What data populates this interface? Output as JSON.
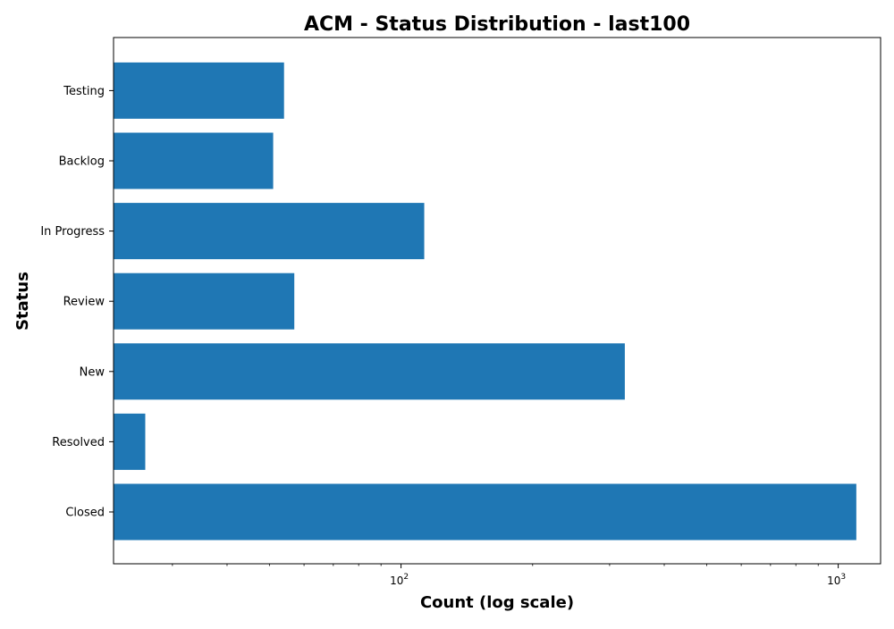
{
  "chart_data": {
    "type": "bar",
    "orientation": "horizontal",
    "title": "ACM - Status Distribution - last100",
    "xlabel": "Count (log scale)",
    "ylabel": "Status",
    "x_scale": "log",
    "x_ticks": [
      {
        "value": 100,
        "base": "10",
        "exponent": "2"
      },
      {
        "value": 1000,
        "base": "10",
        "exponent": "3"
      }
    ],
    "xlim": [
      22,
      1250
    ],
    "grid": false,
    "legend": "none",
    "bar_color": "#1f77b4",
    "categories": [
      "Closed",
      "Resolved",
      "New",
      "Review",
      "In Progress",
      "Backlog",
      "Testing"
    ],
    "values": [
      1100,
      26,
      325,
      57,
      113,
      51,
      54
    ]
  }
}
